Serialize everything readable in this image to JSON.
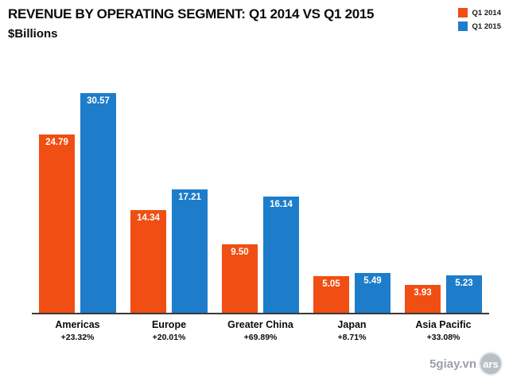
{
  "header": {
    "title": "REVENUE BY OPERATING SEGMENT: Q1 2014 VS Q1 2015",
    "subtitle": "$Billions"
  },
  "legend": [
    {
      "label": "Q1 2014",
      "color": "#f04e12"
    },
    {
      "label": "Q1 2015",
      "color": "#1d7dca"
    }
  ],
  "chart_data": {
    "type": "bar",
    "title": "Revenue by Operating Segment: Q1 2014 vs Q1 2015",
    "ylabel": "$Billions",
    "categories": [
      "Americas",
      "Europe",
      "Greater China",
      "Japan",
      "Asia Pacific"
    ],
    "series": [
      {
        "name": "Q1 2014",
        "color": "#f04e12",
        "values": [
          24.79,
          14.34,
          9.5,
          5.05,
          3.93
        ]
      },
      {
        "name": "Q1 2015",
        "color": "#1d7dca",
        "values": [
          30.57,
          17.21,
          16.14,
          5.49,
          5.23
        ]
      }
    ],
    "pct_change": [
      "+23.32%",
      "+20.01%",
      "+69.89%",
      "+8.71%",
      "+33.08%"
    ],
    "value_label_format": "2dp",
    "ylim": [
      0,
      31
    ],
    "grid": false,
    "legend_position": "top-right"
  },
  "watermark": {
    "site": "5giay.vn",
    "logo": "ars"
  }
}
